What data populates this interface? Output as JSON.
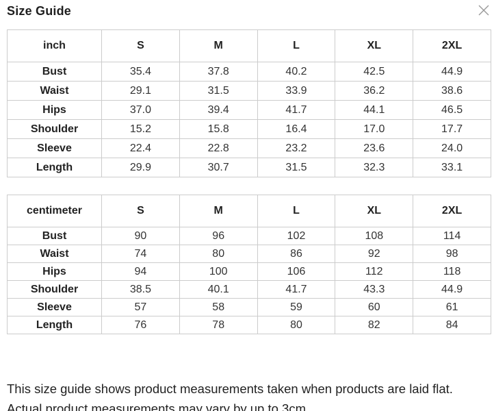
{
  "modal": {
    "title": "Size Guide",
    "close_icon": "close-x"
  },
  "tables": [
    {
      "unit": "inch",
      "sizes": [
        "S",
        "M",
        "L",
        "XL",
        "2XL"
      ],
      "rows": [
        {
          "label": "Bust",
          "values": [
            "35.4",
            "37.8",
            "40.2",
            "42.5",
            "44.9"
          ]
        },
        {
          "label": "Waist",
          "values": [
            "29.1",
            "31.5",
            "33.9",
            "36.2",
            "38.6"
          ]
        },
        {
          "label": "Hips",
          "values": [
            "37.0",
            "39.4",
            "41.7",
            "44.1",
            "46.5"
          ]
        },
        {
          "label": "Shoulder",
          "values": [
            "15.2",
            "15.8",
            "16.4",
            "17.0",
            "17.7"
          ]
        },
        {
          "label": "Sleeve",
          "values": [
            "22.4",
            "22.8",
            "23.2",
            "23.6",
            "24.0"
          ]
        },
        {
          "label": "Length",
          "values": [
            "29.9",
            "30.7",
            "31.5",
            "32.3",
            "33.1"
          ]
        }
      ]
    },
    {
      "unit": "centimeter",
      "sizes": [
        "S",
        "M",
        "L",
        "XL",
        "2XL"
      ],
      "rows": [
        {
          "label": "Bust",
          "values": [
            "90",
            "96",
            "102",
            "108",
            "114"
          ]
        },
        {
          "label": "Waist",
          "values": [
            "74",
            "80",
            "86",
            "92",
            "98"
          ]
        },
        {
          "label": "Hips",
          "values": [
            "94",
            "100",
            "106",
            "112",
            "118"
          ]
        },
        {
          "label": "Shoulder",
          "values": [
            "38.5",
            "40.1",
            "41.7",
            "43.3",
            "44.9"
          ]
        },
        {
          "label": "Sleeve",
          "values": [
            "57",
            "58",
            "59",
            "60",
            "61"
          ]
        },
        {
          "label": "Length",
          "values": [
            "76",
            "78",
            "80",
            "82",
            "84"
          ]
        }
      ]
    }
  ],
  "note": "This size guide shows product measurements taken when products are laid flat. Actual product measurements may vary by up to 3cm.",
  "colors": {
    "border": "#cccccc",
    "title_text": "#1f1f1f",
    "label_text": "#222222",
    "value_text": "#333333",
    "close_icon": "#999999",
    "background": "#ffffff"
  }
}
